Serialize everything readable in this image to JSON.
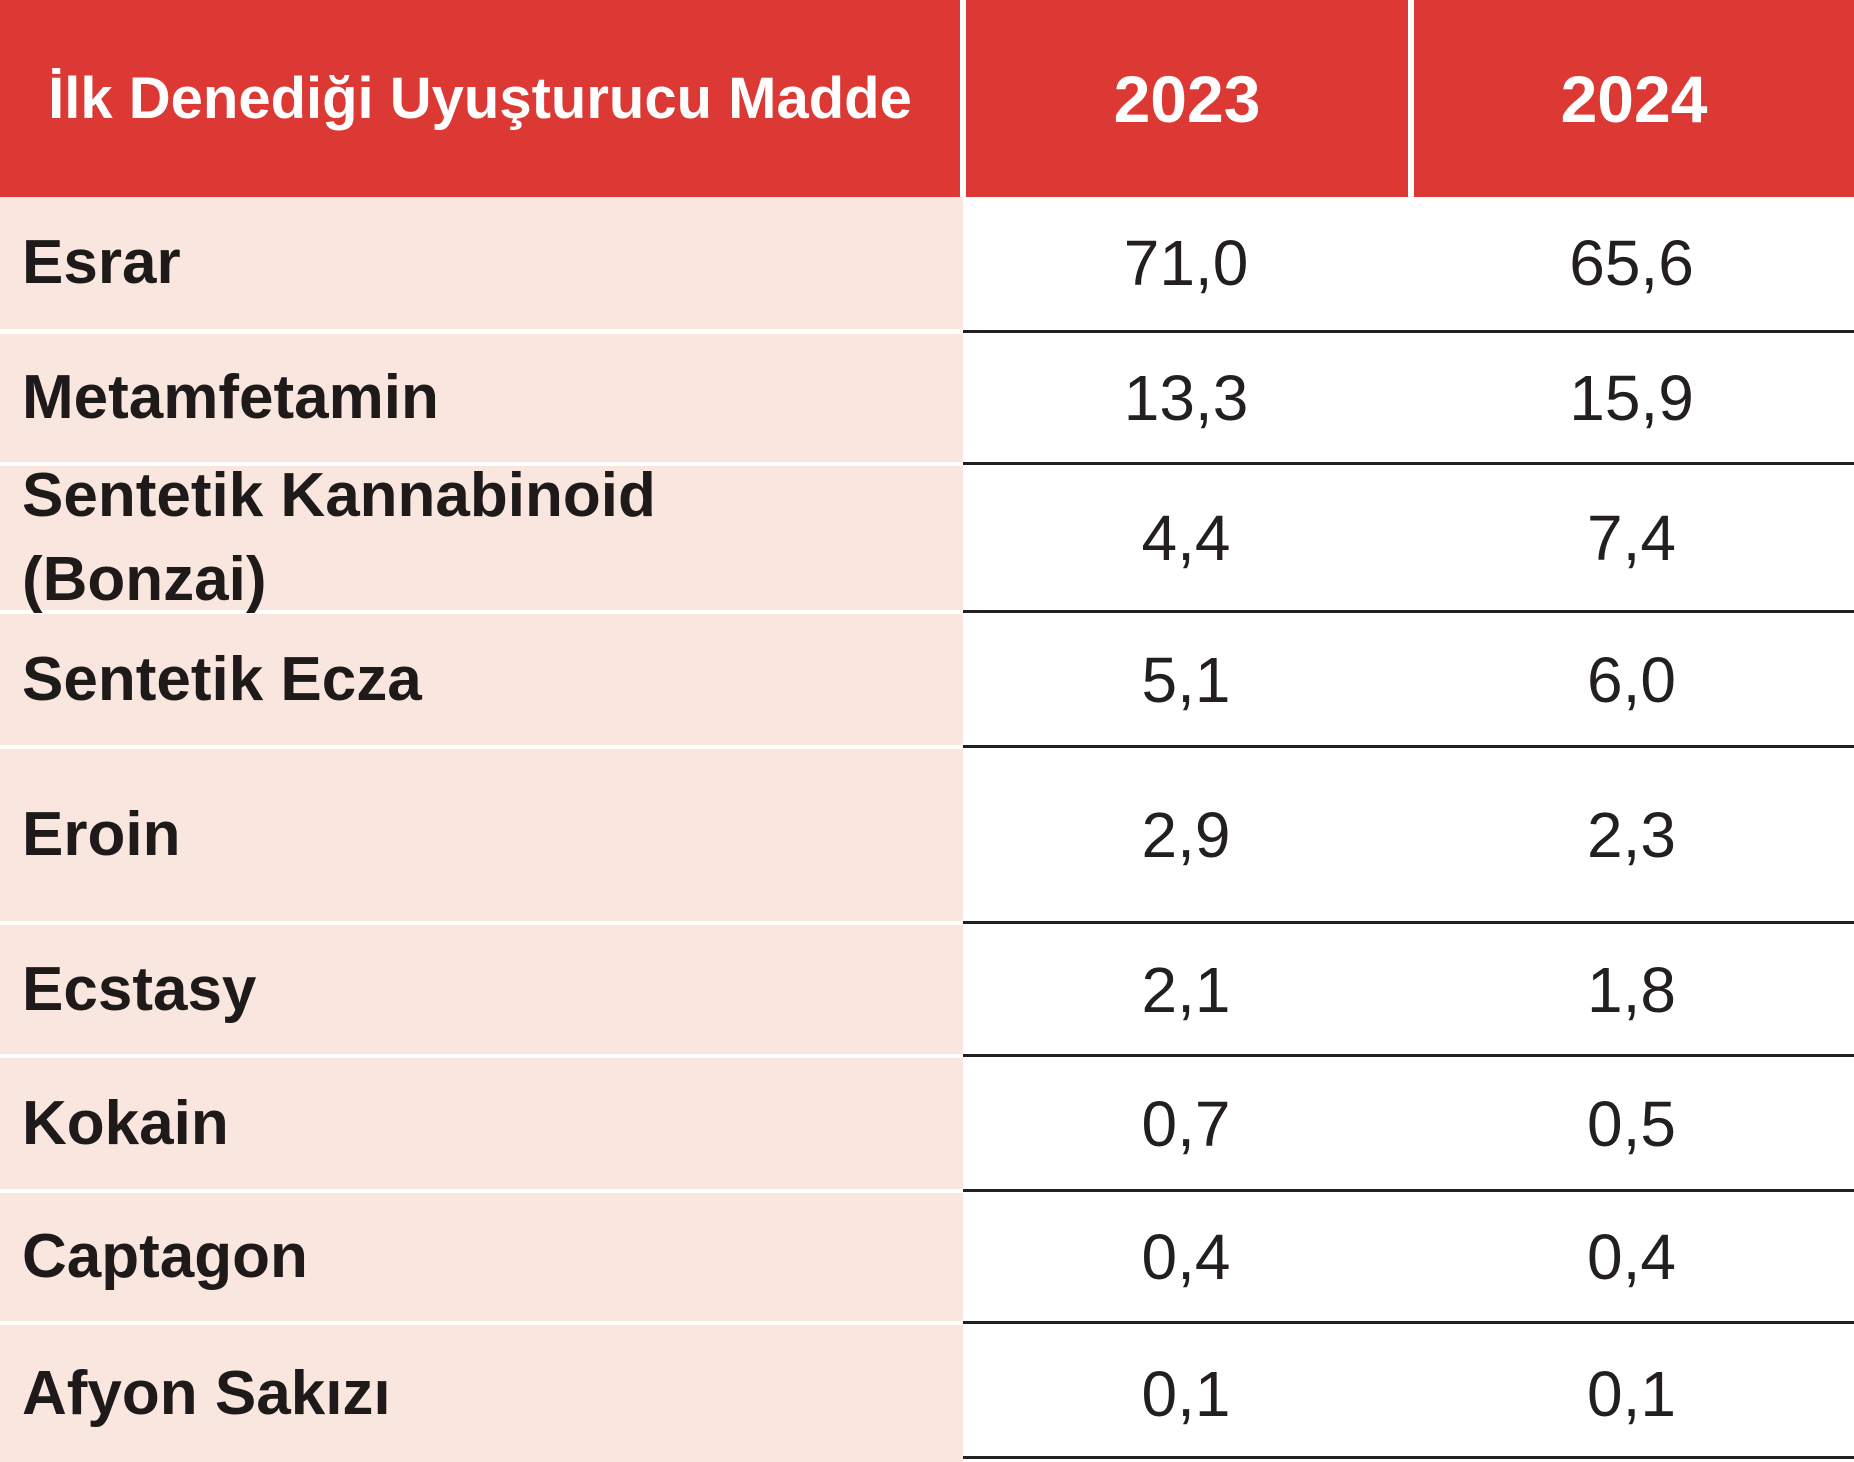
{
  "chart_data": {
    "type": "table",
    "columns": [
      "İlk Denediği Uyuşturucu Madde",
      "2023",
      "2024"
    ],
    "rows": [
      {
        "label": "Esrar",
        "v2023": "71,0",
        "v2024": "65,6"
      },
      {
        "label": "Metamfetamin",
        "v2023": "13,3",
        "v2024": "15,9"
      },
      {
        "label": "Sentetik Kannabinoid (Bonzai)",
        "v2023": "4,4",
        "v2024": "7,4"
      },
      {
        "label": "Sentetik Ecza",
        "v2023": "5,1",
        "v2024": "6,0"
      },
      {
        "label": "Eroin",
        "v2023": "2,9",
        "v2024": "2,3"
      },
      {
        "label": "Ecstasy",
        "v2023": "2,1",
        "v2024": "1,8"
      },
      {
        "label": "Kokain",
        "v2023": "0,7",
        "v2024": "0,5"
      },
      {
        "label": "Captagon",
        "v2023": "0,4",
        "v2024": "0,4"
      },
      {
        "label": "Afyon Sakızı",
        "v2023": "0,1",
        "v2024": "0,1"
      }
    ]
  },
  "colors": {
    "header": "#dc3834",
    "label_bg": "#f9e6de",
    "text": "#231f20"
  }
}
